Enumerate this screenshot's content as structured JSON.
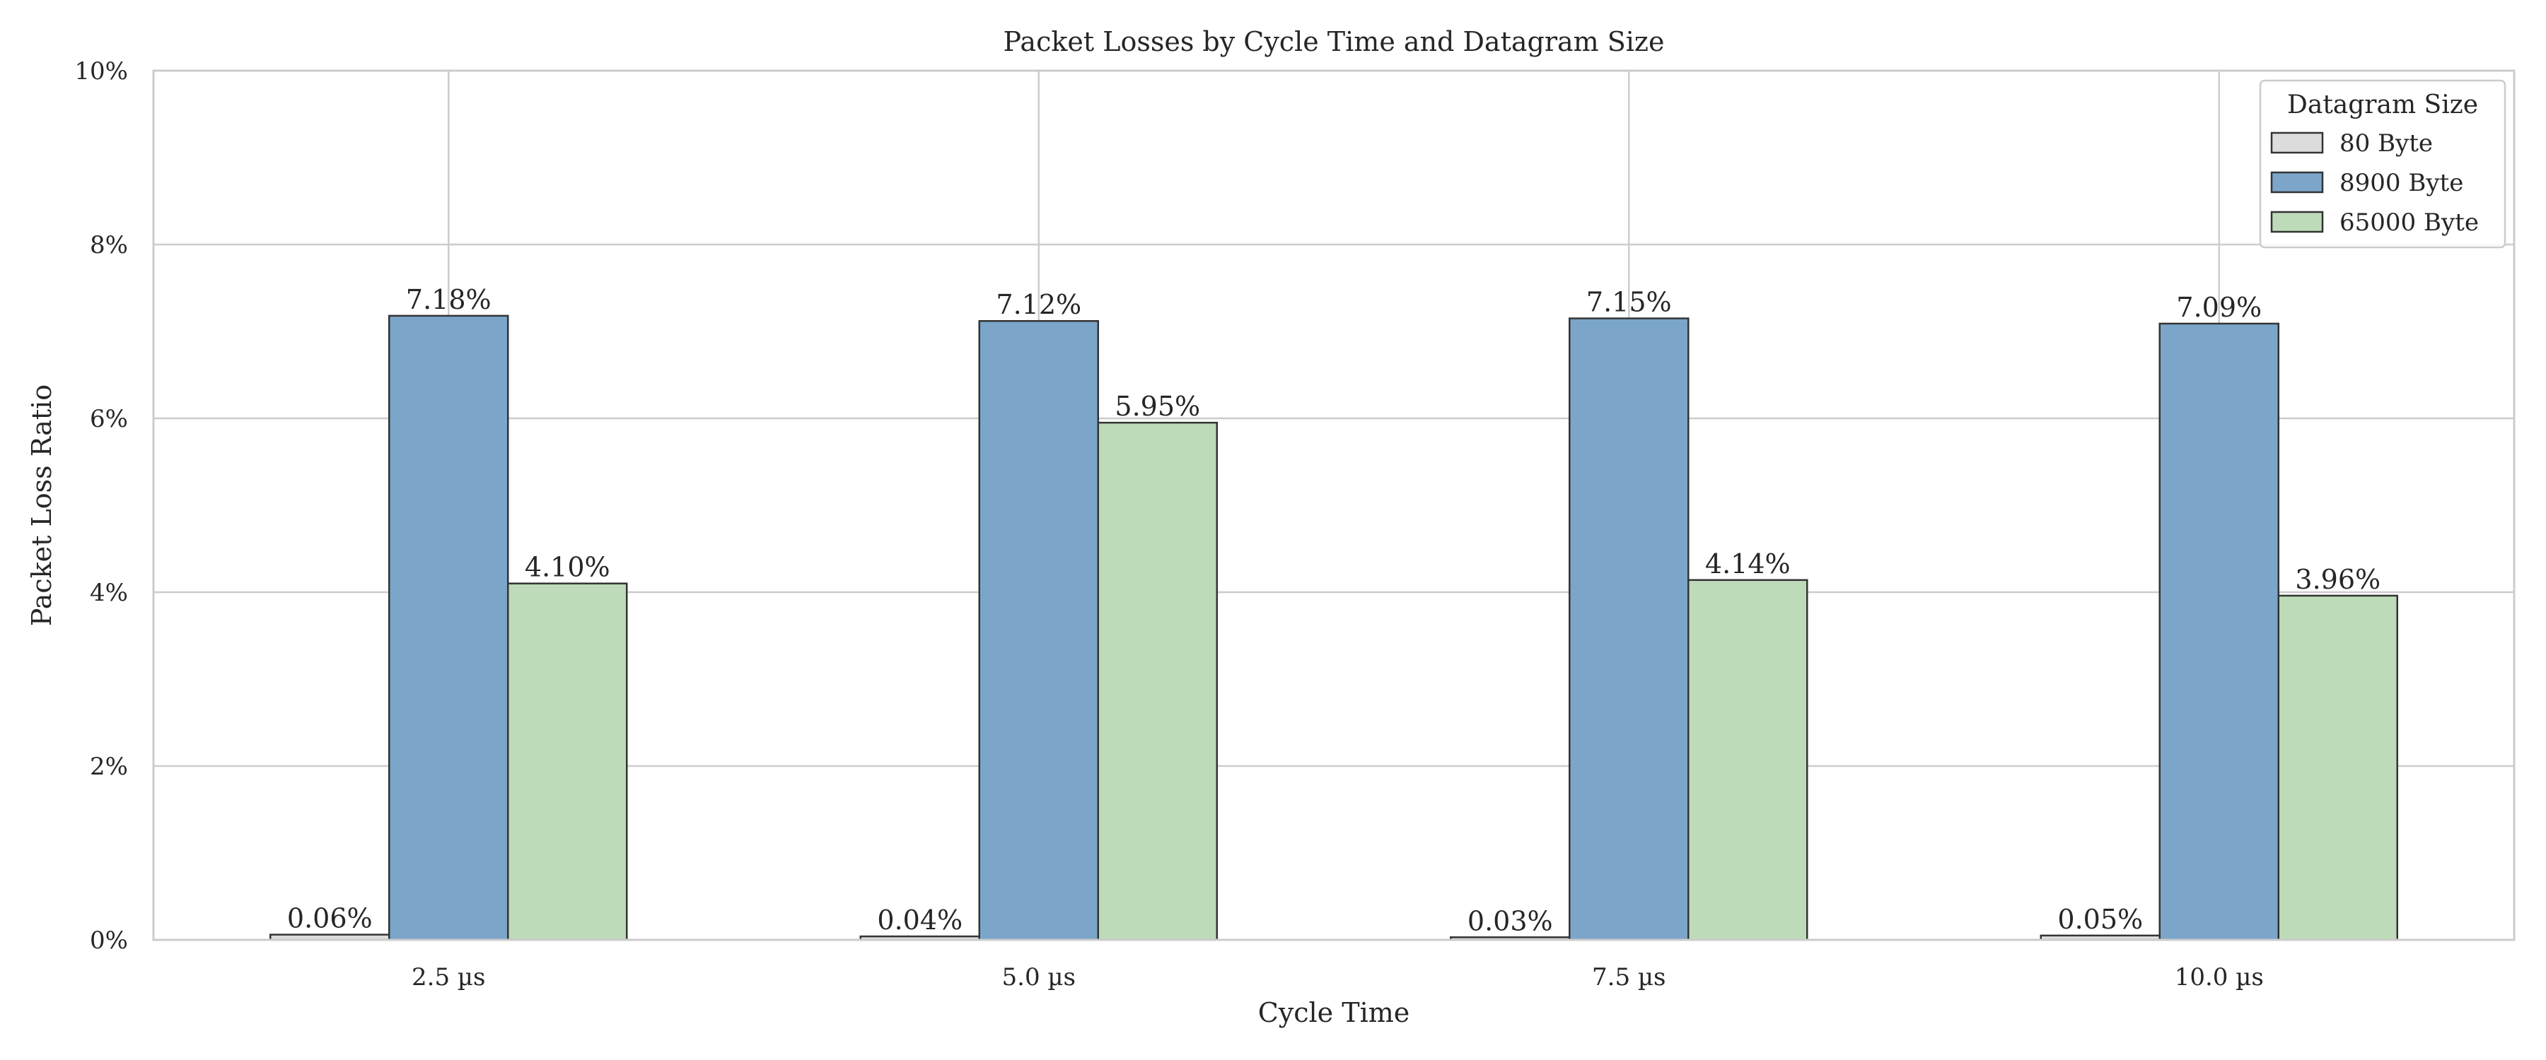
{
  "chart_data": {
    "type": "bar",
    "title": "Packet Losses by Cycle Time and Datagram Size",
    "xlabel": "Cycle Time",
    "ylabel": "Packet Loss Ratio",
    "ylim": [
      0,
      10
    ],
    "y_ticks": [
      0,
      2,
      4,
      6,
      8,
      10
    ],
    "y_tick_labels": [
      "0%",
      "2%",
      "4%",
      "6%",
      "8%",
      "10%"
    ],
    "categories": [
      "2.5 µs",
      "5.0 µs",
      "7.5 µs",
      "10.0 µs"
    ],
    "grid": true,
    "legend": {
      "title": "Datagram Size",
      "placement": "top-right"
    },
    "series": [
      {
        "name": "80 Byte",
        "color": "#dcdcdc",
        "values": [
          0.06,
          0.04,
          0.03,
          0.05
        ],
        "labels": [
          "0.06%",
          "0.04%",
          "0.03%",
          "0.05%"
        ]
      },
      {
        "name": "8900 Byte",
        "color": "#7ba6ca",
        "values": [
          7.18,
          7.12,
          7.15,
          7.09
        ],
        "labels": [
          "7.18%",
          "7.12%",
          "7.15%",
          "7.09%"
        ]
      },
      {
        "name": "65000 Byte",
        "color": "#bddbb8",
        "values": [
          4.1,
          5.95,
          4.14,
          3.96
        ],
        "labels": [
          "4.10%",
          "5.95%",
          "4.14%",
          "3.96%"
        ]
      }
    ]
  }
}
